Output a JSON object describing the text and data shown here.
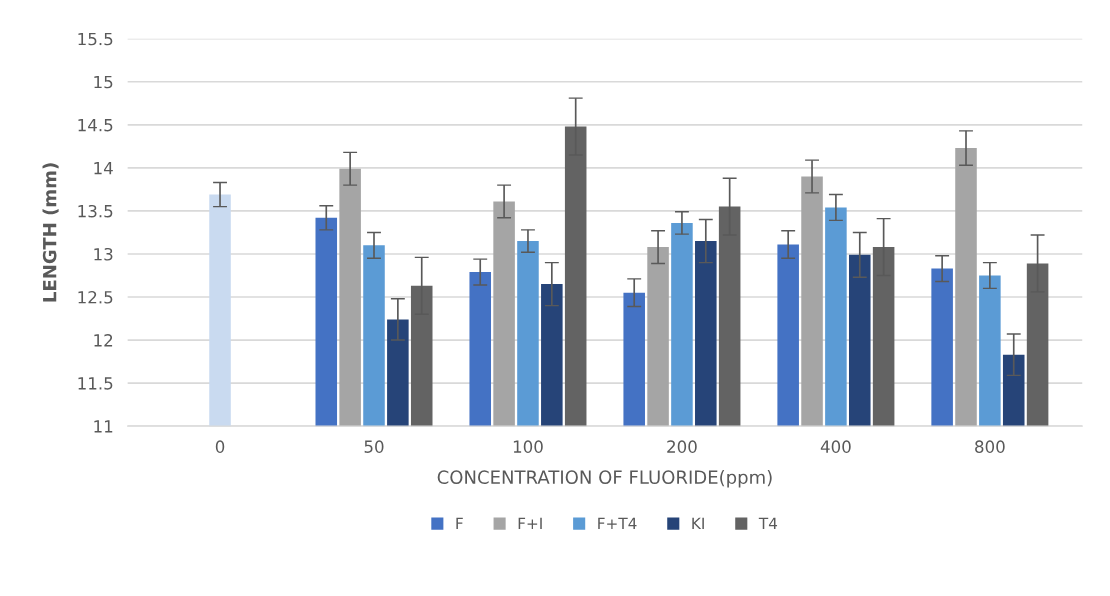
{
  "chart_data": {
    "type": "bar",
    "xlabel": "CONCENTRATION OF FLUORIDE(ppm)",
    "ylabel": "LENGTH (mm)",
    "categories": [
      "0",
      "50",
      "100",
      "200",
      "400",
      "800"
    ],
    "series": [
      {
        "name": "F",
        "color": "#4472c4",
        "values": [
          null,
          13.42,
          12.79,
          12.55,
          13.11,
          12.83
        ],
        "errors": [
          null,
          0.14,
          0.15,
          0.16,
          0.16,
          0.15
        ]
      },
      {
        "name": "F+I",
        "color": "#a5a5a5",
        "values": [
          null,
          13.99,
          13.61,
          13.08,
          13.9,
          14.23
        ],
        "errors": [
          null,
          0.19,
          0.19,
          0.19,
          0.19,
          0.2
        ]
      },
      {
        "name": "F+T4",
        "color": "#5b9bd5",
        "colors": [
          "#c9daf0",
          "#5b9bd5",
          "#5b9bd5",
          "#5b9bd5",
          "#5b9bd5",
          "#5b9bd5"
        ],
        "values": [
          13.69,
          13.1,
          13.15,
          13.36,
          13.54,
          12.75
        ],
        "errors": [
          0.14,
          0.15,
          0.13,
          0.13,
          0.15,
          0.15
        ]
      },
      {
        "name": "KI",
        "color": "#264478",
        "values": [
          null,
          12.24,
          12.65,
          13.15,
          12.99,
          11.83
        ],
        "errors": [
          null,
          0.24,
          0.25,
          0.25,
          0.26,
          0.24
        ]
      },
      {
        "name": "T4",
        "color": "#636363",
        "values": [
          null,
          12.63,
          14.48,
          13.55,
          13.08,
          12.89
        ],
        "errors": [
          null,
          0.33,
          0.33,
          0.33,
          0.33,
          0.33
        ]
      }
    ],
    "ylim": [
      11,
      15.5
    ],
    "yticks": [
      11,
      11.5,
      12,
      12.5,
      13,
      13.5,
      14,
      14.5,
      15,
      15.5
    ],
    "grid": "y",
    "legend": "bottom"
  }
}
